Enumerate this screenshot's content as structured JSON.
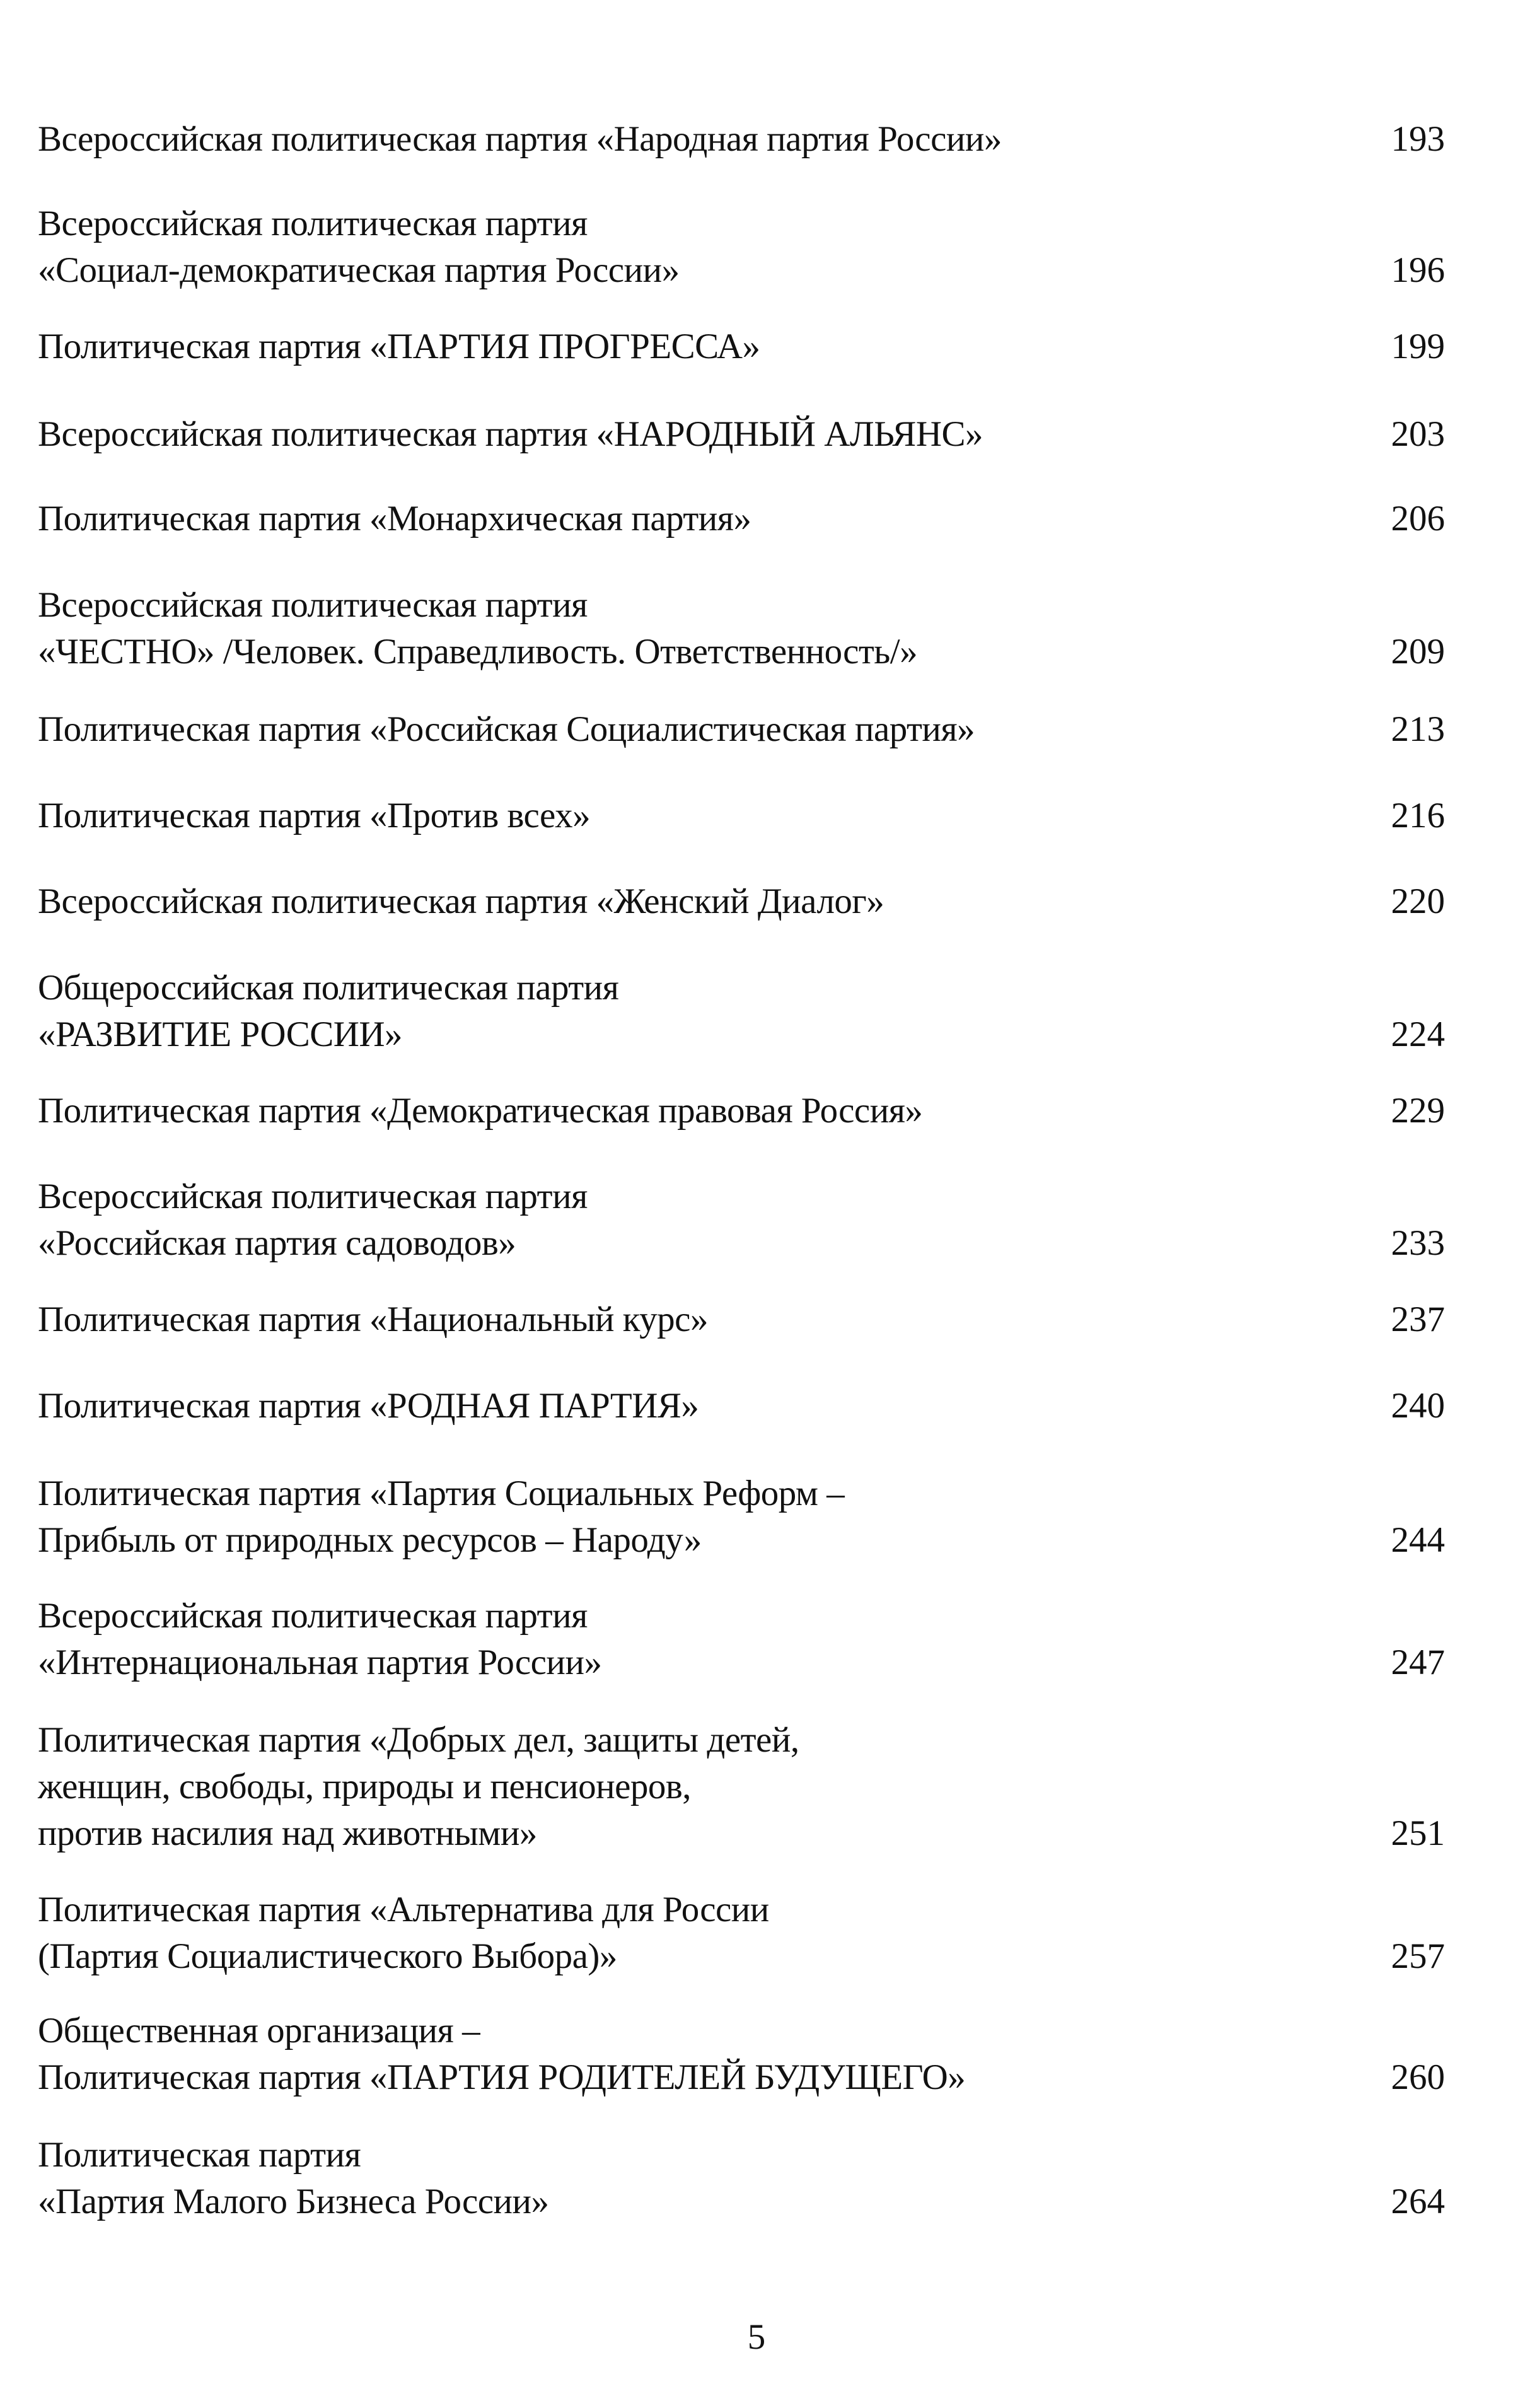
{
  "toc": [
    {
      "title": "Всероссийская политическая партия «Народная партия России»",
      "page": "193"
    },
    {
      "title": "Всероссийская политическая партия\n«Социал-демократическая партия России»",
      "page": "196"
    },
    {
      "title": "Политическая партия «ПАРТИЯ ПРОГРЕССА»",
      "page": "199"
    },
    {
      "title": "Всероссийская политическая партия «НАРОДНЫЙ АЛЬЯНС»",
      "page": "203"
    },
    {
      "title": "Политическая партия «Монархическая партия»",
      "page": "206"
    },
    {
      "title": "Всероссийская политическая партия\n«ЧЕСТНО» /Человек. Справедливость. Ответственность/»",
      "page": "209"
    },
    {
      "title": "Политическая партия «Российская Социалистическая партия»",
      "page": "213"
    },
    {
      "title": "Политическая партия «Против всех»",
      "page": "216"
    },
    {
      "title": "Всероссийская политическая партия «Женский Диалог»",
      "page": "220"
    },
    {
      "title": "Общероссийская политическая партия\n«РАЗВИТИЕ РОССИИ»",
      "page": "224"
    },
    {
      "title": "Политическая партия «Демократическая правовая Россия»",
      "page": "229"
    },
    {
      "title": "Всероссийская политическая партия\n«Российская партия садоводов»",
      "page": "233"
    },
    {
      "title": "Политическая партия «Национальный курс»",
      "page": "237"
    },
    {
      "title": "Политическая партия «РОДНАЯ ПАРТИЯ»",
      "page": "240"
    },
    {
      "title": "Политическая партия «Партия Социальных Реформ –\nПрибыль от природных ресурсов – Народу»",
      "page": "244"
    },
    {
      "title": "Всероссийская политическая партия\n«Интернациональная партия России»",
      "page": "247"
    },
    {
      "title": "Политическая партия «Добрых дел, защиты детей,\nженщин, свободы, природы и пенсионеров,\nпротив насилия над животными»",
      "page": "251"
    },
    {
      "title": "Политическая партия «Альтернатива для России\n(Партия Социалистического Выбора)»",
      "page": "257"
    },
    {
      "title": "Общественная организация –\nПолитическая партия «ПАРТИЯ РОДИТЕЛЕЙ БУДУЩЕГО»",
      "page": "260"
    },
    {
      "title": "Политическая партия\n«Партия Малого Бизнеса России»",
      "page": "264"
    }
  ],
  "footer": {
    "page_number": "5"
  }
}
